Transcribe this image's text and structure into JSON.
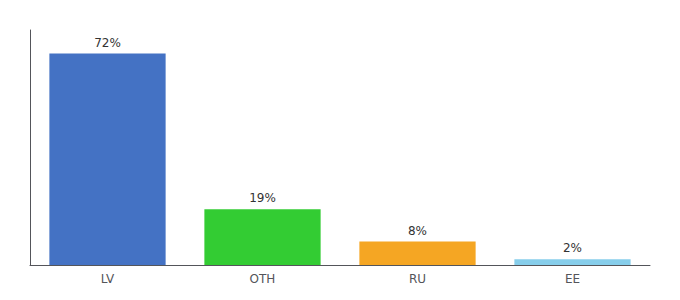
{
  "chart_data": {
    "type": "bar",
    "categories": [
      "LV",
      "OTH",
      "RU",
      "EE"
    ],
    "values": [
      72,
      19,
      8,
      2
    ],
    "value_labels": [
      "72%",
      "19%",
      "8%",
      "2%"
    ],
    "colors": [
      "#4472c4",
      "#33cc33",
      "#f5a623",
      "#87ceeb"
    ],
    "ylim": [
      0,
      80
    ],
    "grid": false,
    "data_labels": true,
    "tick_labels": "x"
  }
}
